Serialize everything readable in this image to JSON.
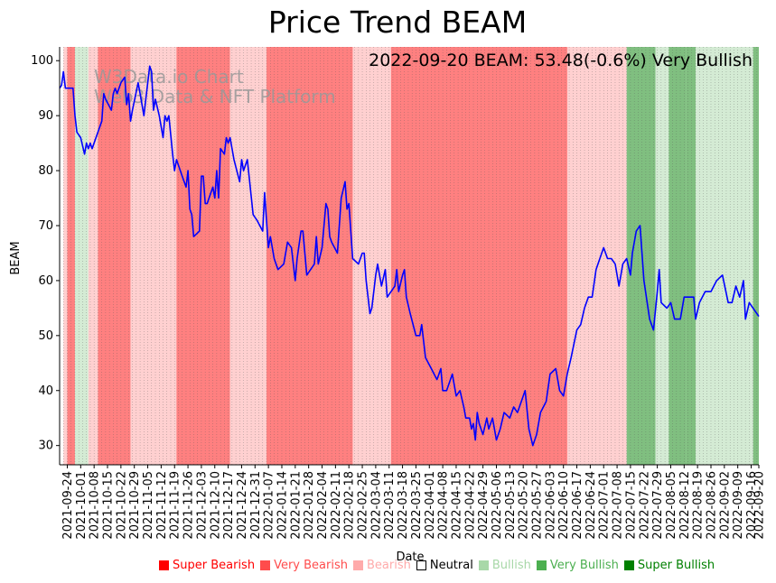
{
  "chart_data": {
    "type": "line",
    "title": "Price Trend BEAM",
    "xlabel": "Date",
    "ylabel": "BEAM",
    "ylim": [
      26.5,
      102.5
    ],
    "yticks": [
      30,
      40,
      50,
      60,
      70,
      80,
      90,
      100
    ],
    "annotation": "2022-09-20 BEAM: 53.48(-0.6%) Very Bullish",
    "watermark": [
      "W3Data.io Chart",
      "Web3 Data & NFT Platform"
    ],
    "start_date": "2021-09-20",
    "end_date": "2022-09-20",
    "xtick_labels": [
      "2021-09-24",
      "2021-10-01",
      "2021-10-08",
      "2021-10-15",
      "2021-10-22",
      "2021-10-29",
      "2021-11-05",
      "2021-11-12",
      "2021-11-19",
      "2021-11-26",
      "2021-12-03",
      "2021-12-10",
      "2021-12-17",
      "2021-12-24",
      "2021-12-31",
      "2022-01-07",
      "2022-01-14",
      "2022-01-21",
      "2022-01-28",
      "2022-02-04",
      "2022-02-11",
      "2022-02-18",
      "2022-02-25",
      "2022-03-04",
      "2022-03-11",
      "2022-03-18",
      "2022-03-25",
      "2022-04-01",
      "2022-04-08",
      "2022-04-15",
      "2022-04-22",
      "2022-04-29",
      "2022-05-06",
      "2022-05-13",
      "2022-05-20",
      "2022-05-27",
      "2022-06-03",
      "2022-06-10",
      "2022-06-17",
      "2022-06-24",
      "2022-07-01",
      "2022-07-08",
      "2022-07-15",
      "2022-07-22",
      "2022-07-29",
      "2022-08-05",
      "2022-08-12",
      "2022-08-19",
      "2022-08-26",
      "2022-09-02",
      "2022-09-09",
      "2022-09-16",
      "2022-09-20"
    ],
    "series": [
      {
        "name": "BEAM",
        "color": "#0000ff",
        "points": [
          [
            "2021-09-20",
            95
          ],
          [
            "2021-09-21",
            95.5
          ],
          [
            "2021-09-22",
            98
          ],
          [
            "2021-09-23",
            95
          ],
          [
            "2021-09-25",
            95
          ],
          [
            "2021-09-27",
            95
          ],
          [
            "2021-09-28",
            90
          ],
          [
            "2021-09-29",
            87
          ],
          [
            "2021-10-01",
            86
          ],
          [
            "2021-10-03",
            83
          ],
          [
            "2021-10-04",
            85
          ],
          [
            "2021-10-05",
            84
          ],
          [
            "2021-10-06",
            85
          ],
          [
            "2021-10-07",
            84
          ],
          [
            "2021-10-10",
            87
          ],
          [
            "2021-10-12",
            89
          ],
          [
            "2021-10-13",
            94
          ],
          [
            "2021-10-14",
            93
          ],
          [
            "2021-10-17",
            91
          ],
          [
            "2021-10-18",
            94
          ],
          [
            "2021-10-19",
            95
          ],
          [
            "2021-10-20",
            94
          ],
          [
            "2021-10-22",
            96
          ],
          [
            "2021-10-24",
            97
          ],
          [
            "2021-10-25",
            92
          ],
          [
            "2021-10-26",
            94
          ],
          [
            "2021-10-27",
            89
          ],
          [
            "2021-10-28",
            91
          ],
          [
            "2021-10-31",
            96
          ],
          [
            "2021-11-01",
            94
          ],
          [
            "2021-11-03",
            90
          ],
          [
            "2021-11-04",
            93
          ],
          [
            "2021-11-06",
            99
          ],
          [
            "2021-11-07",
            98
          ],
          [
            "2021-11-08",
            91
          ],
          [
            "2021-11-09",
            93
          ],
          [
            "2021-11-11",
            90
          ],
          [
            "2021-11-13",
            86
          ],
          [
            "2021-11-14",
            90
          ],
          [
            "2021-11-15",
            89
          ],
          [
            "2021-11-16",
            90
          ],
          [
            "2021-11-18",
            83
          ],
          [
            "2021-11-19",
            80
          ],
          [
            "2021-11-20",
            82
          ],
          [
            "2021-11-21",
            81
          ],
          [
            "2021-11-23",
            79
          ],
          [
            "2021-11-25",
            77
          ],
          [
            "2021-11-26",
            80
          ],
          [
            "2021-11-27",
            73
          ],
          [
            "2021-11-28",
            72
          ],
          [
            "2021-11-29",
            68
          ],
          [
            "2021-12-02",
            69
          ],
          [
            "2021-12-03",
            79
          ],
          [
            "2021-12-04",
            79
          ],
          [
            "2021-12-05",
            74
          ],
          [
            "2021-12-06",
            74
          ],
          [
            "2021-12-08",
            76
          ],
          [
            "2021-12-09",
            77
          ],
          [
            "2021-12-10",
            75
          ],
          [
            "2021-12-11",
            80
          ],
          [
            "2021-12-12",
            75
          ],
          [
            "2021-12-13",
            84
          ],
          [
            "2021-12-15",
            83
          ],
          [
            "2021-12-16",
            86
          ],
          [
            "2021-12-17",
            85
          ],
          [
            "2021-12-18",
            86
          ],
          [
            "2021-12-20",
            82
          ],
          [
            "2021-12-23",
            78
          ],
          [
            "2021-12-24",
            82
          ],
          [
            "2021-12-25",
            80
          ],
          [
            "2021-12-27",
            82
          ],
          [
            "2021-12-30",
            72
          ],
          [
            "2022-01-01",
            71
          ],
          [
            "2022-01-04",
            69
          ],
          [
            "2022-01-05",
            76
          ],
          [
            "2022-01-06",
            71
          ],
          [
            "2022-01-07",
            66
          ],
          [
            "2022-01-08",
            68
          ],
          [
            "2022-01-10",
            64
          ],
          [
            "2022-01-12",
            62
          ],
          [
            "2022-01-15",
            63
          ],
          [
            "2022-01-17",
            67
          ],
          [
            "2022-01-19",
            66
          ],
          [
            "2022-01-21",
            60
          ],
          [
            "2022-01-22",
            64
          ],
          [
            "2022-01-24",
            69
          ],
          [
            "2022-01-25",
            69
          ],
          [
            "2022-01-27",
            61
          ],
          [
            "2022-01-29",
            62
          ],
          [
            "2022-01-31",
            63
          ],
          [
            "2022-02-01",
            68
          ],
          [
            "2022-02-02",
            63
          ],
          [
            "2022-02-04",
            66
          ],
          [
            "2022-02-06",
            74
          ],
          [
            "2022-02-07",
            73
          ],
          [
            "2022-02-08",
            68
          ],
          [
            "2022-02-09",
            67
          ],
          [
            "2022-02-12",
            65
          ],
          [
            "2022-02-13",
            70
          ],
          [
            "2022-02-14",
            75
          ],
          [
            "2022-02-16",
            78
          ],
          [
            "2022-02-17",
            73
          ],
          [
            "2022-02-18",
            74
          ],
          [
            "2022-02-20",
            64
          ],
          [
            "2022-02-23",
            63
          ],
          [
            "2022-02-25",
            65
          ],
          [
            "2022-02-26",
            65
          ],
          [
            "2022-02-27",
            60
          ],
          [
            "2022-02-28",
            57
          ],
          [
            "2022-03-01",
            54
          ],
          [
            "2022-03-02",
            55
          ],
          [
            "2022-03-04",
            61
          ],
          [
            "2022-03-05",
            63
          ],
          [
            "2022-03-07",
            59
          ],
          [
            "2022-03-09",
            62
          ],
          [
            "2022-03-10",
            57
          ],
          [
            "2022-03-12",
            58
          ],
          [
            "2022-03-14",
            59
          ],
          [
            "2022-03-15",
            62
          ],
          [
            "2022-03-16",
            58
          ],
          [
            "2022-03-18",
            61
          ],
          [
            "2022-03-19",
            62
          ],
          [
            "2022-03-20",
            57
          ],
          [
            "2022-03-22",
            54
          ],
          [
            "2022-03-25",
            50
          ],
          [
            "2022-03-27",
            50
          ],
          [
            "2022-03-28",
            52
          ],
          [
            "2022-03-30",
            46
          ],
          [
            "2022-04-02",
            44
          ],
          [
            "2022-04-05",
            42
          ],
          [
            "2022-04-06",
            43
          ],
          [
            "2022-04-07",
            44
          ],
          [
            "2022-04-08",
            40
          ],
          [
            "2022-04-10",
            40
          ],
          [
            "2022-04-12",
            42
          ],
          [
            "2022-04-13",
            43
          ],
          [
            "2022-04-15",
            39
          ],
          [
            "2022-04-17",
            40
          ],
          [
            "2022-04-19",
            37
          ],
          [
            "2022-04-20",
            35
          ],
          [
            "2022-04-22",
            35
          ],
          [
            "2022-04-23",
            33
          ],
          [
            "2022-04-24",
            34
          ],
          [
            "2022-04-25",
            31
          ],
          [
            "2022-04-26",
            36
          ],
          [
            "2022-04-27",
            34
          ],
          [
            "2022-04-29",
            32
          ],
          [
            "2022-05-01",
            35
          ],
          [
            "2022-05-02",
            33
          ],
          [
            "2022-05-04",
            35
          ],
          [
            "2022-05-06",
            31
          ],
          [
            "2022-05-08",
            33
          ],
          [
            "2022-05-10",
            36
          ],
          [
            "2022-05-13",
            35
          ],
          [
            "2022-05-15",
            37
          ],
          [
            "2022-05-17",
            36
          ],
          [
            "2022-05-19",
            38
          ],
          [
            "2022-05-21",
            40
          ],
          [
            "2022-05-23",
            33
          ],
          [
            "2022-05-25",
            30
          ],
          [
            "2022-05-27",
            32
          ],
          [
            "2022-05-29",
            36
          ],
          [
            "2022-06-01",
            38
          ],
          [
            "2022-06-03",
            43
          ],
          [
            "2022-06-06",
            44
          ],
          [
            "2022-06-08",
            40
          ],
          [
            "2022-06-10",
            39
          ],
          [
            "2022-06-12",
            43
          ],
          [
            "2022-06-14",
            46
          ],
          [
            "2022-06-17",
            51
          ],
          [
            "2022-06-19",
            52
          ],
          [
            "2022-06-21",
            55
          ],
          [
            "2022-06-23",
            57
          ],
          [
            "2022-06-25",
            57
          ],
          [
            "2022-06-27",
            62
          ],
          [
            "2022-06-29",
            64
          ],
          [
            "2022-07-01",
            66
          ],
          [
            "2022-07-03",
            64
          ],
          [
            "2022-07-05",
            64
          ],
          [
            "2022-07-07",
            63
          ],
          [
            "2022-07-09",
            59
          ],
          [
            "2022-07-11",
            63
          ],
          [
            "2022-07-13",
            64
          ],
          [
            "2022-07-15",
            61
          ],
          [
            "2022-07-16",
            65
          ],
          [
            "2022-07-18",
            69
          ],
          [
            "2022-07-20",
            70
          ],
          [
            "2022-07-22",
            60
          ],
          [
            "2022-07-25",
            53
          ],
          [
            "2022-07-27",
            51
          ],
          [
            "2022-07-29",
            58
          ],
          [
            "2022-07-30",
            62
          ],
          [
            "2022-07-31",
            56
          ],
          [
            "2022-08-03",
            55
          ],
          [
            "2022-08-05",
            56
          ],
          [
            "2022-08-07",
            53
          ],
          [
            "2022-08-10",
            53
          ],
          [
            "2022-08-12",
            57
          ],
          [
            "2022-08-14",
            57
          ],
          [
            "2022-08-17",
            57
          ],
          [
            "2022-08-18",
            53
          ],
          [
            "2022-08-20",
            56
          ],
          [
            "2022-08-23",
            58
          ],
          [
            "2022-08-26",
            58
          ],
          [
            "2022-08-29",
            60
          ],
          [
            "2022-09-01",
            61
          ],
          [
            "2022-09-04",
            56
          ],
          [
            "2022-09-06",
            56
          ],
          [
            "2022-09-08",
            59
          ],
          [
            "2022-09-10",
            57
          ],
          [
            "2022-09-12",
            60
          ],
          [
            "2022-09-13",
            53
          ],
          [
            "2022-09-15",
            56
          ],
          [
            "2022-09-17",
            55
          ],
          [
            "2022-09-20",
            53.48
          ]
        ]
      }
    ],
    "sentiment_bands": [
      {
        "start": "2021-09-20",
        "end": "2021-09-22",
        "level": "Neutral"
      },
      {
        "start": "2021-09-22",
        "end": "2021-09-24",
        "level": "Bearish"
      },
      {
        "start": "2021-09-24",
        "end": "2021-09-28",
        "level": "Very Bearish"
      },
      {
        "start": "2021-09-28",
        "end": "2021-10-05",
        "level": "Bullish"
      },
      {
        "start": "2021-10-05",
        "end": "2021-10-10",
        "level": "Bearish"
      },
      {
        "start": "2021-10-10",
        "end": "2021-10-27",
        "level": "Very Bearish"
      },
      {
        "start": "2021-10-27",
        "end": "2021-11-20",
        "level": "Bearish"
      },
      {
        "start": "2021-11-20",
        "end": "2021-12-18",
        "level": "Very Bearish"
      },
      {
        "start": "2021-12-18",
        "end": "2021-12-25",
        "level": "Bearish"
      },
      {
        "start": "2021-12-25",
        "end": "2022-01-06",
        "level": "Bearish"
      },
      {
        "start": "2022-01-06",
        "end": "2022-02-20",
        "level": "Very Bearish"
      },
      {
        "start": "2022-02-20",
        "end": "2022-03-12",
        "level": "Bearish"
      },
      {
        "start": "2022-03-12",
        "end": "2022-06-12",
        "level": "Very Bearish"
      },
      {
        "start": "2022-06-12",
        "end": "2022-07-13",
        "level": "Bearish"
      },
      {
        "start": "2022-07-13",
        "end": "2022-07-28",
        "level": "Very Bullish"
      },
      {
        "start": "2022-07-28",
        "end": "2022-08-04",
        "level": "Bullish"
      },
      {
        "start": "2022-08-04",
        "end": "2022-08-13",
        "level": "Very Bullish"
      },
      {
        "start": "2022-08-13",
        "end": "2022-08-18",
        "level": "Very Bullish"
      },
      {
        "start": "2022-08-18",
        "end": "2022-09-17",
        "level": "Bullish"
      },
      {
        "start": "2022-09-17",
        "end": "2022-09-20",
        "level": "Very Bullish"
      }
    ],
    "legend": [
      {
        "label": "Super Bearish",
        "color": "#ff0000",
        "text_color": "#ff0000"
      },
      {
        "label": "Very Bearish",
        "color": "#ff4c4c",
        "text_color": "#ff4c4c"
      },
      {
        "label": "Bearish",
        "color": "#ffaaaa",
        "text_color": "#ffaaaa"
      },
      {
        "label": "Neutral",
        "color": "#ffffff",
        "text_color": "#000000"
      },
      {
        "label": "Bullish",
        "color": "#a8d8a8",
        "text_color": "#a8d8a8"
      },
      {
        "label": "Very Bullish",
        "color": "#4caf50",
        "text_color": "#4caf50"
      },
      {
        "label": "Super Bullish",
        "color": "#008000",
        "text_color": "#008000"
      }
    ],
    "band_colors": {
      "Super Bearish": "#ff0000",
      "Very Bearish": "#ff8080",
      "Bearish": "#ffd0d0",
      "Neutral": "#ffffff",
      "Bullish": "#d4ebd4",
      "Very Bullish": "#80bf80",
      "Super Bullish": "#008000"
    }
  }
}
